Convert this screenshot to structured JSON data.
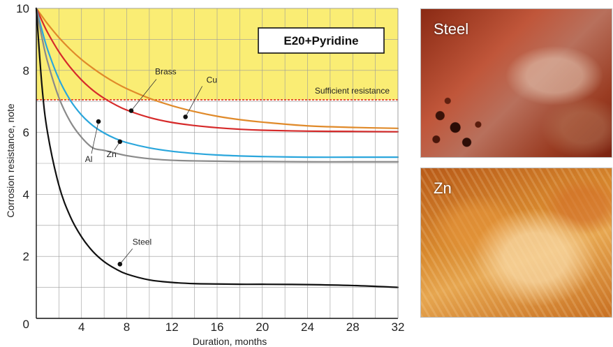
{
  "chart_data": {
    "type": "line",
    "title": "E20+Pyridine",
    "xlabel": "Duration, months",
    "ylabel": "Corrosion resistance, note",
    "xlim": [
      0,
      32
    ],
    "ylim": [
      0,
      10
    ],
    "x_ticks": [
      0,
      4,
      8,
      12,
      16,
      20,
      24,
      28,
      32
    ],
    "y_ticks": [
      0,
      2,
      4,
      6,
      8,
      10
    ],
    "grid": true,
    "colors": {
      "shade": "#faed74",
      "threshold": "#e0301e",
      "Brass": "#e08a2a",
      "Cu": "#d62a2a",
      "Al": "#2aa6dc",
      "Zn": "#8a8a8a",
      "Steel": "#111111"
    },
    "threshold": {
      "value": 7.05,
      "label": "Sufficient resistance"
    },
    "x": [
      0,
      0.5,
      1,
      2,
      3,
      4,
      5,
      6,
      7,
      8,
      10,
      12,
      14,
      16,
      18,
      20,
      24,
      28,
      32
    ],
    "series": [
      {
        "name": "Brass",
        "values": [
          10,
          9.75,
          9.5,
          9.06,
          8.68,
          8.35,
          8.07,
          7.82,
          7.6,
          7.41,
          7.1,
          6.86,
          6.67,
          6.52,
          6.41,
          6.33,
          6.21,
          6.16,
          6.13
        ]
      },
      {
        "name": "Cu",
        "values": [
          10,
          9.6,
          9.22,
          8.6,
          8.1,
          7.69,
          7.36,
          7.1,
          6.89,
          6.72,
          6.48,
          6.32,
          6.22,
          6.15,
          6.1,
          6.07,
          6.04,
          6.03,
          6.02
        ]
      },
      {
        "name": "Al",
        "values": [
          10,
          9.3,
          8.67,
          7.72,
          7.04,
          6.56,
          6.22,
          5.98,
          5.8,
          5.67,
          5.5,
          5.39,
          5.32,
          5.27,
          5.24,
          5.22,
          5.2,
          5.2,
          5.2
        ]
      },
      {
        "name": "Zn",
        "values": [
          10,
          9.06,
          8.27,
          7.12,
          6.35,
          5.84,
          5.5,
          5.42,
          5.33,
          5.25,
          5.15,
          5.1,
          5.08,
          5.07,
          5.06,
          5.06,
          5.05,
          5.05,
          5.05
        ]
      },
      {
        "name": "Steel",
        "values": [
          10,
          7.5,
          5.98,
          4.29,
          3.29,
          2.63,
          2.16,
          1.83,
          1.6,
          1.43,
          1.24,
          1.16,
          1.12,
          1.11,
          1.1,
          1.1,
          1.09,
          1.06,
          1.0
        ]
      }
    ],
    "markers": [
      {
        "series": "Brass",
        "x": 8.4,
        "y": 6.7
      },
      {
        "series": "Cu",
        "x": 13.2,
        "y": 6.5
      },
      {
        "series": "Al",
        "x": 5.5,
        "y": 6.35
      },
      {
        "series": "Zn",
        "x": 7.4,
        "y": 5.7
      },
      {
        "series": "Steel",
        "x": 7.4,
        "y": 1.75
      }
    ]
  },
  "photos": {
    "steel_label": "Steel",
    "zn_label": "Zn"
  }
}
